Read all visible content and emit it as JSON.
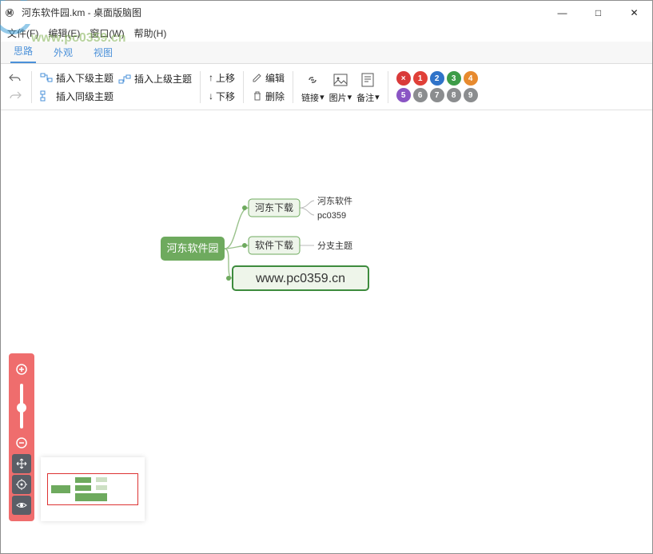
{
  "window": {
    "title": "河东软件园.km - 桌面版脑图",
    "minimize": "—",
    "maximize": "□",
    "close": "✕"
  },
  "menubar": {
    "file": "文件(F)",
    "edit": "编辑(E)",
    "window": "窗口(W)",
    "help": "帮助(H)"
  },
  "tabs": {
    "idea": "思路",
    "appearance": "外观",
    "view": "视图"
  },
  "toolbar": {
    "insert_child": "插入下级主题",
    "insert_parent": "插入上级主题",
    "insert_sibling": "插入同级主题",
    "move_up": "上移",
    "move_down": "下移",
    "edit": "编辑",
    "delete": "删除",
    "link": "链接",
    "image": "图片",
    "note": "备注",
    "caret": "▾"
  },
  "priorities": {
    "del": "×",
    "p1": "1",
    "p2": "2",
    "p3": "3",
    "p4": "4",
    "p5": "5",
    "p6": "6",
    "p7": "7",
    "p8": "8",
    "p9": "9",
    "c_del": "#d93a3a",
    "c1": "#e04038",
    "c2": "#2f73c9",
    "c3": "#3d9c48",
    "c4": "#e78a2e",
    "c5": "#8a55c4",
    "c6": "#8b8d8f",
    "c7": "#8b8d8f",
    "c8": "#8b8d8f",
    "c9": "#8b8d8f"
  },
  "search": {
    "placeholder": "",
    "up": "⌃",
    "down": "⌄",
    "close": "✕"
  },
  "mindmap": {
    "root": "河东软件园",
    "n1": "河东下载",
    "n1a": "河东软件",
    "n1b": "pc0359",
    "n2": "软件下载",
    "n2a": "分支主题",
    "n3": "www.pc0359.cn",
    "colors": {
      "root_fill": "#6eaa5e",
      "root_text": "#ffffff",
      "node_fill": "#eef5ea",
      "node_border": "#6eaa5e",
      "selected_border": "#3d8b3d",
      "leaf_text": "#333333",
      "line": "#9ac28c",
      "leaf_line": "#bbbbbb"
    }
  },
  "watermark": {
    "text": "河东软件园",
    "url": "www.pc0359.cn"
  }
}
